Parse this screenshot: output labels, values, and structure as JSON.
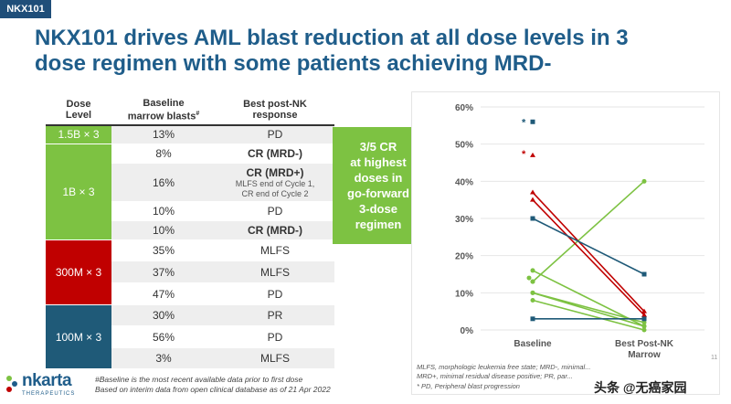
{
  "tag": "NKX101",
  "title": {
    "line1": "NKX101 drives AML blast reduction at all dose levels in 3",
    "line2": "dose regimen with some patients achieving MRD-"
  },
  "table": {
    "headers": {
      "dose_level": [
        "Dose",
        "Level"
      ],
      "baseline": [
        "Baseline",
        "marrow blasts"
      ],
      "baseline_sup": "#",
      "response": [
        "Best post-NK",
        "response"
      ]
    },
    "groups": [
      {
        "dose": "1.5B × 3",
        "color": "#7dc242",
        "rows": [
          {
            "baseline": "13%",
            "response": "PD",
            "bold": false
          }
        ]
      },
      {
        "dose": "1B × 3",
        "color": "#7dc242",
        "rows": [
          {
            "baseline": "8%",
            "response": "CR (MRD-)",
            "bold": true
          },
          {
            "baseline": "16%",
            "response": "CR (MRD+)",
            "bold": true,
            "sub": [
              "MLFS end of Cycle 1,",
              "CR end of Cycle 2"
            ]
          },
          {
            "baseline": "10%",
            "response": "PD",
            "bold": false
          },
          {
            "baseline": "10%",
            "response": "CR (MRD-)",
            "bold": true
          }
        ]
      },
      {
        "dose": "300M × 3",
        "color": "#c00000",
        "rows": [
          {
            "baseline": "35%",
            "response": "MLFS",
            "bold": false
          },
          {
            "baseline": "37%",
            "response": "MLFS",
            "bold": false
          },
          {
            "baseline": "47%",
            "response": "PD",
            "bold": false
          }
        ]
      },
      {
        "dose": "100M × 3",
        "color": "#1f5a78",
        "rows": [
          {
            "baseline": "30%",
            "response": "PR",
            "bold": false
          },
          {
            "baseline": "56%",
            "response": "PD",
            "bold": false
          },
          {
            "baseline": "3%",
            "response": "MLFS",
            "bold": false
          }
        ]
      }
    ]
  },
  "callout": [
    "3/5 CR",
    "at highest",
    "doses in",
    "go-forward",
    "3-dose",
    "regimen"
  ],
  "footnotes": {
    "line1": "#Baseline is the most recent available data prior to first dose",
    "line2": "Based on interim data from open clinical database as of 21 Apr 2022"
  },
  "logo": {
    "name": "nkarta",
    "sub": "THERAPEUTICS"
  },
  "chart_notes": {
    "line1": "MLFS, morphologic leukemia free state; MRD-, minimal...",
    "line2": "MRD+, minimal residual disease positive; PR, par...",
    "line3": "* PD, Peripheral blast progression"
  },
  "watermark": "头条 @无癌家园",
  "page_number": "11",
  "chart_data": {
    "type": "line",
    "categories": [
      "Baseline",
      "Best Post-NK Marrow"
    ],
    "ylim": [
      0,
      60
    ],
    "yticks": [
      "0%",
      "10%",
      "20%",
      "30%",
      "40%",
      "50%",
      "60%"
    ],
    "ytick_values": [
      0,
      10,
      20,
      30,
      40,
      50,
      60
    ],
    "series": [
      {
        "color": "#7dc242",
        "values": [
          13,
          40
        ]
      },
      {
        "color": "#7dc242",
        "values": [
          8,
          0
        ]
      },
      {
        "color": "#7dc242",
        "values": [
          16,
          1
        ]
      },
      {
        "color": "#7dc242",
        "values": [
          10,
          1
        ]
      },
      {
        "color": "#7dc242",
        "values": [
          10,
          2
        ]
      },
      {
        "color": "#c00000",
        "values": [
          35,
          4
        ]
      },
      {
        "color": "#c00000",
        "values": [
          37,
          5
        ]
      },
      {
        "color": "#c00000",
        "values": [
          47,
          null
        ]
      },
      {
        "color": "#1f5a78",
        "values": [
          30,
          15
        ]
      },
      {
        "color": "#1f5a78",
        "values": [
          56,
          null
        ]
      },
      {
        "color": "#1f5a78",
        "values": [
          3,
          3
        ]
      }
    ],
    "extra_points": [
      {
        "color": "#7dc242",
        "value": 14
      },
      {
        "color": "#7dc242",
        "value": 13
      }
    ],
    "asterisks": [
      "*",
      "*"
    ]
  }
}
